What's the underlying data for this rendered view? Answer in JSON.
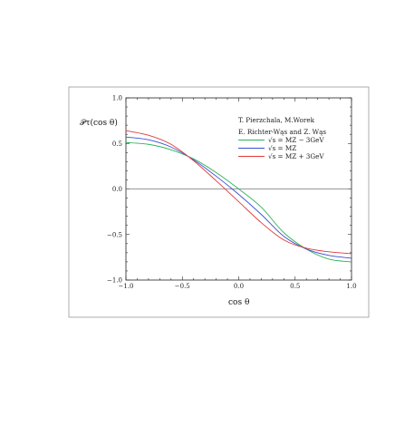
{
  "chart_data": {
    "type": "line",
    "title": "",
    "ylabel": "𝒫τ(cos θ)",
    "xlabel": "cos θ",
    "xlim": [
      -1.0,
      1.0
    ],
    "ylim": [
      -1.0,
      1.0
    ],
    "xticks": [
      "−1.0",
      "−0.5",
      "0.0",
      "0.5",
      "1.0"
    ],
    "yticks": [
      "1.0",
      "0.5",
      "0.0",
      "−0.5",
      "−1.0"
    ],
    "grid": false,
    "zero_line": true,
    "legend_position": "top-right",
    "credits": [
      "T. Pierzchala, M.Worek",
      "E. Richter-Wąs and Z. Wąs"
    ],
    "series": [
      {
        "name": "√s = MZ − 3GeV",
        "color": "#2eb25a",
        "x": [
          -1.0,
          -0.8,
          -0.6,
          -0.4,
          -0.2,
          0.0,
          0.2,
          0.4,
          0.6,
          0.8,
          1.0
        ],
        "y": [
          0.51,
          0.49,
          0.43,
          0.33,
          0.18,
          0.0,
          -0.2,
          -0.48,
          -0.66,
          -0.77,
          -0.8
        ]
      },
      {
        "name": "√s = MZ",
        "color": "#3a4fd4",
        "x": [
          -1.0,
          -0.8,
          -0.6,
          -0.4,
          -0.2,
          0.0,
          0.2,
          0.4,
          0.6,
          0.8,
          1.0
        ],
        "y": [
          0.57,
          0.54,
          0.46,
          0.32,
          0.14,
          -0.06,
          -0.28,
          -0.52,
          -0.66,
          -0.73,
          -0.76
        ]
      },
      {
        "name": "√s = MZ + 3GeV",
        "color": "#e03a3a",
        "x": [
          -1.0,
          -0.8,
          -0.6,
          -0.4,
          -0.2,
          0.0,
          0.2,
          0.4,
          0.6,
          0.8,
          1.0
        ],
        "y": [
          0.64,
          0.59,
          0.49,
          0.31,
          0.09,
          -0.14,
          -0.37,
          -0.56,
          -0.65,
          -0.69,
          -0.71
        ]
      }
    ]
  }
}
